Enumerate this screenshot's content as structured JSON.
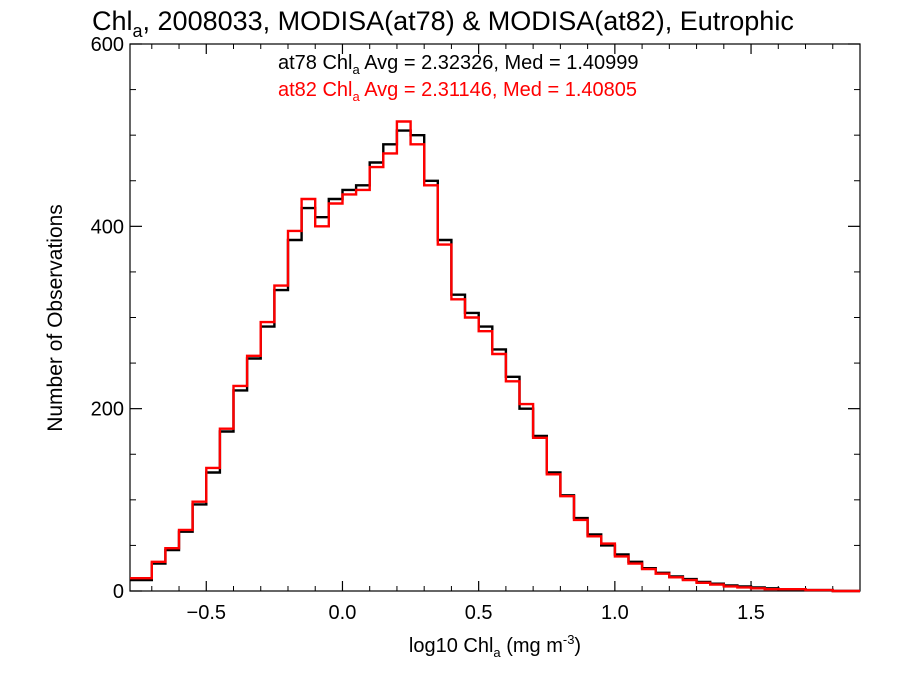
{
  "chart_data": {
    "type": "line",
    "title": {
      "prefix": "Chl",
      "sub": "a",
      "rest": ", 2008033, MODISA(at78) & MODISA(at82), Eutrophic"
    },
    "xlabel": {
      "prefix": "log10 Chl",
      "sub": "a",
      "units": " (mg m",
      "sup": "-3",
      "close": ")"
    },
    "ylabel": "Number of Observations",
    "xlim": [
      -0.78,
      1.9
    ],
    "ylim": [
      0,
      600
    ],
    "x_ticks": [
      -0.5,
      0.0,
      0.5,
      1.0,
      1.5
    ],
    "x_tick_labels": [
      "−0.5",
      "0.0",
      "0.5",
      "1.0",
      "1.5"
    ],
    "y_ticks": [
      0,
      200,
      400,
      600
    ],
    "y_tick_labels": [
      "0",
      "200",
      "400",
      "600"
    ],
    "legend_placement": "top-center",
    "annotations": [
      {
        "series": "at78",
        "color": "#000000",
        "prefix": "at78 Chl",
        "sub": "a",
        "rest": " Avg = 2.32326, Med = 1.40999"
      },
      {
        "series": "at82",
        "color": "#ff0000",
        "prefix": "at82 Chl",
        "sub": "a",
        "rest": " Avg = 2.31146, Med = 1.40805"
      }
    ],
    "series": [
      {
        "name": "at78",
        "color": "#000000",
        "step": "histogram",
        "x": [
          -0.78,
          -0.7,
          -0.65,
          -0.6,
          -0.55,
          -0.5,
          -0.45,
          -0.4,
          -0.35,
          -0.3,
          -0.25,
          -0.2,
          -0.15,
          -0.1,
          -0.05,
          0.0,
          0.05,
          0.1,
          0.15,
          0.2,
          0.25,
          0.3,
          0.35,
          0.4,
          0.45,
          0.5,
          0.55,
          0.6,
          0.65,
          0.7,
          0.75,
          0.8,
          0.85,
          0.9,
          0.95,
          1.0,
          1.05,
          1.1,
          1.15,
          1.2,
          1.25,
          1.3,
          1.35,
          1.4,
          1.45,
          1.5,
          1.55,
          1.6,
          1.7,
          1.8,
          1.9
        ],
        "values": [
          12,
          30,
          45,
          65,
          95,
          130,
          175,
          220,
          255,
          290,
          330,
          385,
          420,
          410,
          430,
          440,
          445,
          470,
          490,
          505,
          500,
          450,
          385,
          325,
          305,
          290,
          265,
          235,
          200,
          170,
          130,
          105,
          80,
          62,
          50,
          40,
          32,
          25,
          20,
          16,
          13,
          10,
          8,
          6,
          5,
          4,
          3,
          2,
          1,
          0,
          0
        ]
      },
      {
        "name": "at82",
        "color": "#ff0000",
        "step": "histogram",
        "x": [
          -0.78,
          -0.7,
          -0.65,
          -0.6,
          -0.55,
          -0.5,
          -0.45,
          -0.4,
          -0.35,
          -0.3,
          -0.25,
          -0.2,
          -0.15,
          -0.1,
          -0.05,
          0.0,
          0.05,
          0.1,
          0.15,
          0.2,
          0.25,
          0.3,
          0.35,
          0.4,
          0.45,
          0.5,
          0.55,
          0.6,
          0.65,
          0.7,
          0.75,
          0.8,
          0.85,
          0.9,
          0.95,
          1.0,
          1.05,
          1.1,
          1.15,
          1.2,
          1.25,
          1.3,
          1.35,
          1.4,
          1.45,
          1.5,
          1.55,
          1.6,
          1.7,
          1.8,
          1.9
        ],
        "values": [
          14,
          32,
          47,
          67,
          98,
          135,
          178,
          225,
          258,
          295,
          335,
          395,
          430,
          400,
          425,
          435,
          440,
          465,
          480,
          515,
          490,
          445,
          380,
          320,
          300,
          285,
          260,
          230,
          205,
          168,
          128,
          104,
          78,
          60,
          52,
          38,
          30,
          24,
          19,
          15,
          12,
          9,
          7,
          5,
          4,
          3,
          2,
          2,
          1,
          0,
          0
        ]
      }
    ]
  }
}
